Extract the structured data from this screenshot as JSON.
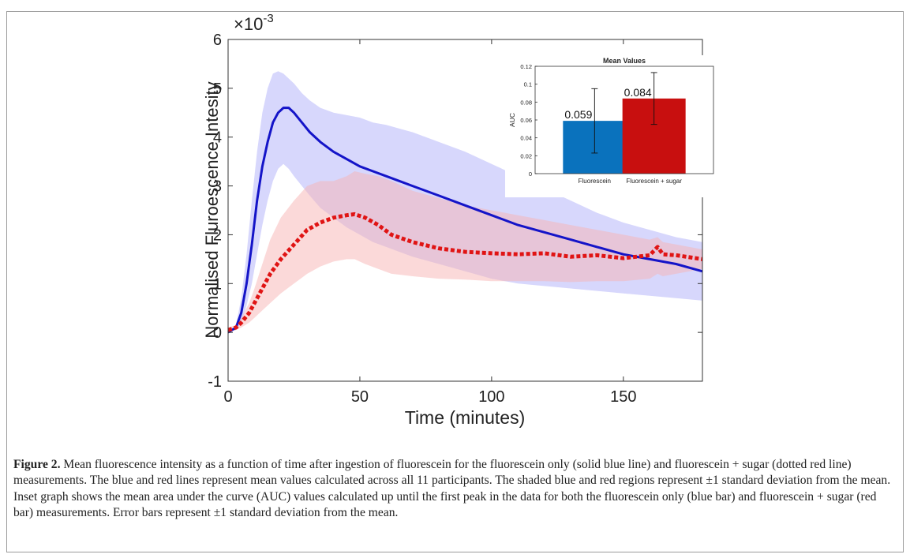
{
  "chart_data": [
    {
      "type": "line",
      "xlabel": "Time (minutes)",
      "ylabel": "Normalised Fluroescence Intesity",
      "y_multiplier_label": "×10",
      "y_multiplier_exponent": "-3",
      "xlim": [
        0,
        180
      ],
      "ylim": [
        -1,
        6
      ],
      "xticks": [
        "0",
        "50",
        "100",
        "150"
      ],
      "xtick_values": [
        0,
        50,
        100,
        150
      ],
      "yticks": [
        "-1",
        "0",
        "1",
        "2",
        "3",
        "4",
        "5",
        "6"
      ],
      "ytick_values": [
        -1,
        0,
        1,
        2,
        3,
        4,
        5,
        6
      ],
      "grid": false,
      "series": [
        {
          "color": "#1414c8",
          "band_color": "#9f9ff8",
          "style": "solid",
          "x": [
            0,
            3,
            5,
            7,
            9,
            11,
            13,
            15,
            17,
            19,
            21,
            23,
            25,
            28,
            31,
            35,
            40,
            45,
            50,
            55,
            60,
            70,
            80,
            90,
            100,
            110,
            120,
            130,
            140,
            150,
            160,
            170,
            180
          ],
          "y": [
            0,
            0.1,
            0.4,
            1.0,
            1.8,
            2.7,
            3.4,
            3.9,
            4.3,
            4.5,
            4.6,
            4.6,
            4.5,
            4.3,
            4.1,
            3.9,
            3.7,
            3.55,
            3.4,
            3.3,
            3.2,
            3.0,
            2.8,
            2.6,
            2.4,
            2.2,
            2.05,
            1.9,
            1.75,
            1.6,
            1.5,
            1.4,
            1.25
          ],
          "upper": [
            0,
            0.15,
            0.7,
            1.6,
            2.7,
            3.7,
            4.5,
            5.0,
            5.3,
            5.35,
            5.3,
            5.2,
            5.1,
            4.9,
            4.75,
            4.6,
            4.5,
            4.45,
            4.4,
            4.3,
            4.25,
            4.1,
            3.9,
            3.7,
            3.45,
            3.2,
            2.95,
            2.7,
            2.45,
            2.25,
            2.1,
            1.95,
            1.85
          ],
          "lower": [
            0,
            0.05,
            0.2,
            0.55,
            1.0,
            1.6,
            2.2,
            2.7,
            3.1,
            3.35,
            3.45,
            3.35,
            3.2,
            3.0,
            2.8,
            2.55,
            2.35,
            2.15,
            2.0,
            1.85,
            1.75,
            1.55,
            1.4,
            1.25,
            1.1,
            1.0,
            0.95,
            0.9,
            0.85,
            0.8,
            0.75,
            0.7,
            0.65
          ]
        },
        {
          "color": "#e01414",
          "band_color": "#f7b4b4",
          "style": "dotted",
          "x": [
            0,
            3,
            5,
            8,
            10,
            13,
            16,
            20,
            25,
            30,
            35,
            40,
            45,
            48,
            52,
            57,
            62,
            70,
            80,
            90,
            100,
            110,
            120,
            130,
            140,
            150,
            160,
            163,
            165,
            170,
            180
          ],
          "y": [
            0.05,
            0.1,
            0.2,
            0.4,
            0.6,
            0.9,
            1.2,
            1.5,
            1.8,
            2.1,
            2.25,
            2.35,
            2.4,
            2.42,
            2.35,
            2.2,
            2.0,
            1.85,
            1.72,
            1.65,
            1.62,
            1.6,
            1.62,
            1.55,
            1.58,
            1.52,
            1.58,
            1.75,
            1.6,
            1.58,
            1.5
          ],
          "upper": [
            0.1,
            0.15,
            0.3,
            0.6,
            0.9,
            1.4,
            1.9,
            2.35,
            2.7,
            3.0,
            3.1,
            3.1,
            3.2,
            3.3,
            3.25,
            3.2,
            3.1,
            2.9,
            2.75,
            2.6,
            2.5,
            2.4,
            2.3,
            2.2,
            2.1,
            2.0,
            1.9,
            1.95,
            1.85,
            1.8,
            1.7
          ],
          "lower": [
            0.0,
            0.05,
            0.1,
            0.2,
            0.3,
            0.45,
            0.6,
            0.8,
            1.0,
            1.2,
            1.35,
            1.45,
            1.5,
            1.5,
            1.4,
            1.3,
            1.2,
            1.15,
            1.1,
            1.08,
            1.05,
            1.05,
            1.05,
            1.03,
            1.05,
            1.05,
            1.1,
            1.2,
            1.15,
            1.2,
            1.3
          ]
        }
      ]
    },
    {
      "type": "bar",
      "title": "Mean Values",
      "ylabel": "AUC",
      "categories": [
        "Fluorescein",
        "Fluorescein + sugar"
      ],
      "values": [
        0.059,
        0.084
      ],
      "value_labels": [
        "0.059",
        "0.084"
      ],
      "errors": [
        0.036,
        0.029
      ],
      "colors": [
        "#0a72bd",
        "#c80f0f"
      ],
      "ylim": [
        0,
        0.12
      ],
      "yticks": [
        "0",
        "0.02",
        "0.04",
        "0.06",
        "0.08",
        "0.1",
        "0.12"
      ],
      "ytick_values": [
        0,
        0.02,
        0.04,
        0.06,
        0.08,
        0.1,
        0.12
      ],
      "legend": "none"
    }
  ],
  "caption": {
    "label": "Figure 2.",
    "text": "Mean fluorescence intensity as a function of time after ingestion of fluorescein for the fluorescein only (solid blue line) and fluorescein + sugar (dotted red line) measurements. The blue and red lines represent mean values calculated across all 11 participants. The shaded blue and red regions represent ±1 standard deviation from the mean. Inset graph shows the mean area under the curve (AUC) values calculated up until the first peak in the data for both the fluorescein only (blue bar) and fluorescein + sugar (red bar) measurements. Error bars represent ±1 standard deviation from the mean."
  }
}
